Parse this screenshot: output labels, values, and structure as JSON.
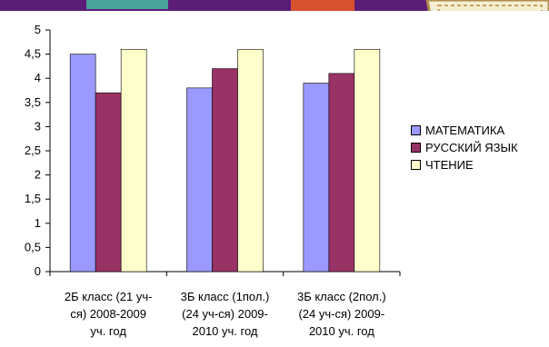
{
  "chart_data": {
    "type": "bar",
    "categories": [
      [
        "2Б класс (21 уч-",
        "ся) 2008-2009",
        "уч. год"
      ],
      [
        "3Б класс (1пол.)",
        "(24 уч-ся)  2009-",
        "2010 уч. год"
      ],
      [
        "3Б класс (2пол.)",
        "(24 уч-ся)  2009-",
        "2010 уч. год"
      ]
    ],
    "series": [
      {
        "name": "МАТЕМАТИКА",
        "color": "#9999ff",
        "values": [
          4.5,
          3.8,
          3.9
        ]
      },
      {
        "name": "РУССКИЙ ЯЗЫК",
        "color": "#993366",
        "values": [
          3.7,
          4.2,
          4.1
        ]
      },
      {
        "name": "ЧТЕНИЕ",
        "color": "#ffffcc",
        "values": [
          4.6,
          4.6,
          4.6
        ]
      }
    ],
    "ylim": [
      0,
      5
    ],
    "yticks": [
      "0",
      "0,5",
      "1",
      "1,5",
      "2",
      "2,5",
      "3",
      "3,5",
      "4",
      "4,5",
      "5"
    ],
    "grid": false,
    "legend_position": "right"
  }
}
